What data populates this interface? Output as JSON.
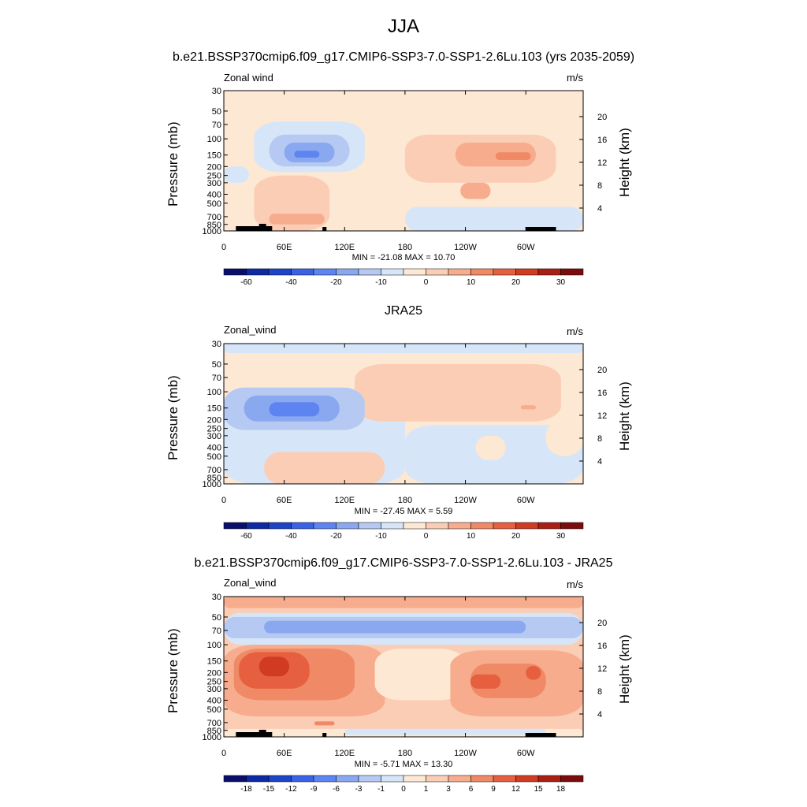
{
  "page": {
    "title": "JJA"
  },
  "colors": {
    "wind_levels": [
      "#0a0f6e",
      "#0d2aa6",
      "#1e44c8",
      "#3a62e6",
      "#5d84f0",
      "#8aa8ef",
      "#b5c9f2",
      "#d6e6f8",
      "#fde8d3",
      "#fbcdb5",
      "#f6ac8d",
      "#ef8966",
      "#e6603f",
      "#d03b22",
      "#a91f15",
      "#7c0c0c"
    ],
    "diff_levels": [
      "#0a0f6e",
      "#0d2aa6",
      "#1e44c8",
      "#3a62e6",
      "#5d84f0",
      "#8aa8ef",
      "#b5c9f2",
      "#d6e6f8",
      "#fde8d3",
      "#fbcdb5",
      "#f6ac8d",
      "#ef8966",
      "#e6603f",
      "#d03b22",
      "#a91f15",
      "#7c0c0c"
    ]
  },
  "chart_data": [
    {
      "type": "heatmap",
      "title": "b.e21.BSSP370cmip6.f09_g17.CMIP6-SSP3-7.0-SSP1-2.6Lu.103 (yrs 2035-2059)",
      "variable_label": "Zonal wind",
      "units_label": "m/s",
      "ylabel": "Pressure (mb)",
      "y2label": "Height (km)",
      "x_ticks": [
        "0",
        "60E",
        "120E",
        "180",
        "120W",
        "60W"
      ],
      "x_tick_lon": [
        0,
        60,
        120,
        180,
        240,
        300
      ],
      "xlim": [
        0,
        357
      ],
      "y_ticks": [
        "30",
        "50",
        "70",
        "100",
        "150",
        "200",
        "250",
        "300",
        "400",
        "500",
        "700",
        "850",
        "1000"
      ],
      "y_tick_p": [
        30,
        50,
        70,
        100,
        150,
        200,
        250,
        300,
        400,
        500,
        700,
        850,
        1000
      ],
      "ylim": [
        1000,
        30
      ],
      "y2_ticks": [
        "4",
        "8",
        "12",
        "16",
        "20"
      ],
      "y2_tick_km": [
        4,
        8,
        12,
        16,
        20
      ],
      "stats_label": "MIN = -21.08  MAX =  10.70",
      "colorbar_labels": [
        "-60",
        "-40",
        "-20",
        "-10",
        "0",
        "10",
        "20",
        "30"
      ],
      "colorbar_label_index": [
        1,
        3,
        5,
        7,
        9,
        11,
        13,
        15
      ],
      "terrain": true,
      "background_level": 8,
      "regions": [
        {
          "level": 7,
          "lon": [
            180,
            357
          ],
          "p": [
            1000,
            550
          ]
        },
        {
          "level": 9,
          "lon": [
            180,
            330
          ],
          "p": [
            300,
            90
          ]
        },
        {
          "level": 10,
          "lon": [
            230,
            310
          ],
          "p": [
            200,
            110
          ]
        },
        {
          "level": 11,
          "lon": [
            270,
            305
          ],
          "p": [
            170,
            140
          ]
        },
        {
          "level": 10,
          "lon": [
            235,
            265
          ],
          "p": [
            450,
            300
          ]
        },
        {
          "level": 9,
          "lon": [
            30,
            105
          ],
          "p": [
            1000,
            250
          ]
        },
        {
          "level": 10,
          "lon": [
            45,
            100
          ],
          "p": [
            850,
            650
          ]
        },
        {
          "level": 7,
          "lon": [
            30,
            140
          ],
          "p": [
            230,
            65
          ]
        },
        {
          "level": 7,
          "lon": [
            0,
            25
          ],
          "p": [
            300,
            200
          ]
        },
        {
          "level": 6,
          "lon": [
            45,
            125
          ],
          "p": [
            200,
            90
          ]
        },
        {
          "level": 5,
          "lon": [
            60,
            110
          ],
          "p": [
            180,
            110
          ]
        },
        {
          "level": 4,
          "lon": [
            70,
            95
          ],
          "p": [
            160,
            135
          ]
        }
      ]
    },
    {
      "type": "heatmap",
      "title": "JRA25",
      "variable_label": "Zonal_wind",
      "units_label": "m/s",
      "ylabel": "Pressure (mb)",
      "y2label": "Height (km)",
      "x_ticks": [
        "0",
        "60E",
        "120E",
        "180",
        "120W",
        "60W"
      ],
      "x_tick_lon": [
        0,
        60,
        120,
        180,
        240,
        300
      ],
      "xlim": [
        0,
        357
      ],
      "y_ticks": [
        "30",
        "50",
        "70",
        "100",
        "150",
        "200",
        "250",
        "300",
        "400",
        "500",
        "700",
        "850",
        "1000"
      ],
      "y_tick_p": [
        30,
        50,
        70,
        100,
        150,
        200,
        250,
        300,
        400,
        500,
        700,
        850,
        1000
      ],
      "ylim": [
        1000,
        30
      ],
      "y2_ticks": [
        "4",
        "8",
        "12",
        "16",
        "20"
      ],
      "y2_tick_km": [
        4,
        8,
        12,
        16,
        20
      ],
      "stats_label": "MIN = -27.45  MAX =   5.59",
      "colorbar_labels": [
        "-60",
        "-40",
        "-20",
        "-10",
        "0",
        "10",
        "20",
        "30"
      ],
      "colorbar_label_index": [
        1,
        3,
        5,
        7,
        9,
        11,
        13,
        15
      ],
      "terrain": false,
      "background_level": 8,
      "regions": [
        {
          "level": 7,
          "lon": [
            0,
            357
          ],
          "p": [
            38,
            30
          ]
        },
        {
          "level": 7,
          "lon": [
            0,
            180
          ],
          "p": [
            1000,
            100
          ]
        },
        {
          "level": 7,
          "lon": [
            180,
            357
          ],
          "p": [
            1000,
            230
          ]
        },
        {
          "level": 9,
          "lon": [
            130,
            335
          ],
          "p": [
            210,
            50
          ]
        },
        {
          "level": 8,
          "lon": [
            250,
            280
          ],
          "p": [
            550,
            300
          ]
        },
        {
          "level": 8,
          "lon": [
            320,
            357
          ],
          "p": [
            500,
            200
          ]
        },
        {
          "level": 9,
          "lon": [
            40,
            160
          ],
          "p": [
            1000,
            450
          ]
        },
        {
          "level": 6,
          "lon": [
            0,
            140
          ],
          "p": [
            260,
            90
          ]
        },
        {
          "level": 5,
          "lon": [
            20,
            115
          ],
          "p": [
            210,
            110
          ]
        },
        {
          "level": 4,
          "lon": [
            45,
            95
          ],
          "p": [
            185,
            130
          ]
        },
        {
          "level": 10,
          "lon": [
            295,
            310
          ],
          "p": [
            155,
            140
          ]
        }
      ]
    },
    {
      "type": "heatmap",
      "title": "b.e21.BSSP370cmip6.f09_g17.CMIP6-SSP3-7.0-SSP1-2.6Lu.103 - JRA25",
      "variable_label": "Zonal_wind",
      "units_label": "m/s",
      "ylabel": "Pressure (mb)",
      "y2label": "Height (km)",
      "x_ticks": [
        "0",
        "60E",
        "120E",
        "180",
        "120W",
        "60W"
      ],
      "x_tick_lon": [
        0,
        60,
        120,
        180,
        240,
        300
      ],
      "xlim": [
        0,
        357
      ],
      "y_ticks": [
        "30",
        "50",
        "70",
        "100",
        "150",
        "200",
        "250",
        "300",
        "400",
        "500",
        "700",
        "850",
        "1000"
      ],
      "y_tick_p": [
        30,
        50,
        70,
        100,
        150,
        200,
        250,
        300,
        400,
        500,
        700,
        850,
        1000
      ],
      "ylim": [
        1000,
        30
      ],
      "y2_ticks": [
        "4",
        "8",
        "12",
        "16",
        "20"
      ],
      "y2_tick_km": [
        4,
        8,
        12,
        16,
        20
      ],
      "stats_label": "MIN =  -5.71  MAX =  13.30",
      "colorbar_labels": [
        "-18",
        "-15",
        "-12",
        "-9",
        "-6",
        "-3",
        "-1",
        "0",
        "1",
        "3",
        "6",
        "9",
        "12",
        "15",
        "18"
      ],
      "colorbar_label_index": [
        1,
        2,
        3,
        4,
        5,
        6,
        7,
        8,
        9,
        10,
        11,
        12,
        13,
        14,
        15
      ],
      "terrain": true,
      "background_level": 9,
      "regions": [
        {
          "level": 10,
          "lon": [
            0,
            357
          ],
          "p": [
            40,
            30
          ]
        },
        {
          "level": 7,
          "lon": [
            0,
            357
          ],
          "p": [
            100,
            45
          ]
        },
        {
          "level": 6,
          "lon": [
            0,
            357
          ],
          "p": [
            85,
            50
          ]
        },
        {
          "level": 5,
          "lon": [
            40,
            300
          ],
          "p": [
            75,
            55
          ]
        },
        {
          "level": 10,
          "lon": [
            0,
            160
          ],
          "p": [
            600,
            100
          ]
        },
        {
          "level": 11,
          "lon": [
            10,
            130
          ],
          "p": [
            400,
            110
          ]
        },
        {
          "level": 12,
          "lon": [
            15,
            85
          ],
          "p": [
            300,
            120
          ]
        },
        {
          "level": 13,
          "lon": [
            35,
            65
          ],
          "p": [
            220,
            135
          ]
        },
        {
          "level": 8,
          "lon": [
            150,
            240
          ],
          "p": [
            400,
            110
          ]
        },
        {
          "level": 10,
          "lon": [
            225,
            357
          ],
          "p": [
            600,
            115
          ]
        },
        {
          "level": 11,
          "lon": [
            245,
            320
          ],
          "p": [
            380,
            160
          ]
        },
        {
          "level": 12,
          "lon": [
            245,
            275
          ],
          "p": [
            300,
            210
          ]
        },
        {
          "level": 12,
          "lon": [
            300,
            315
          ],
          "p": [
            240,
            170
          ]
        },
        {
          "level": 8,
          "lon": [
            0,
            357
          ],
          "p": [
            1000,
            820
          ]
        },
        {
          "level": 7,
          "lon": [
            120,
            320
          ],
          "p": [
            950,
            820
          ]
        },
        {
          "level": 11,
          "lon": [
            90,
            110
          ],
          "p": [
            750,
            680
          ]
        }
      ]
    }
  ]
}
